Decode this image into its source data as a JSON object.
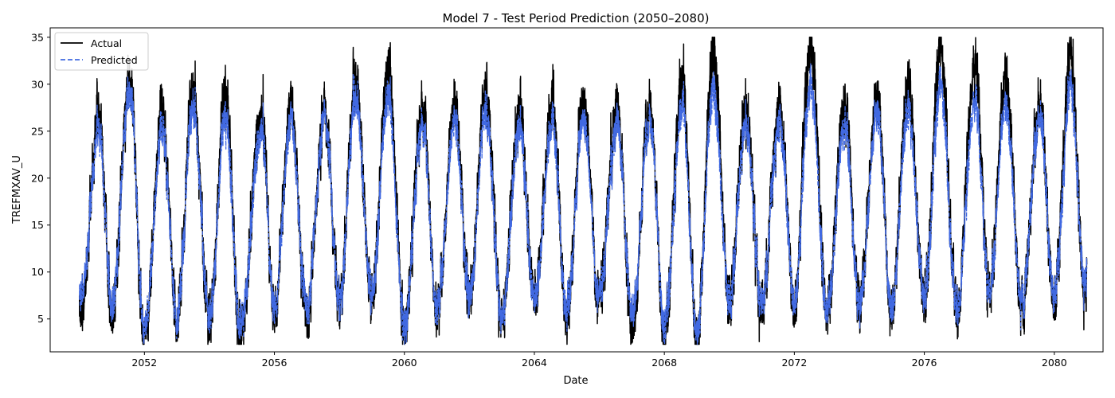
{
  "chart_data": {
    "type": "line",
    "title": "Model 7 - Test Period Prediction (2050–2080)",
    "xlabel": "Date",
    "ylabel": "TREFMXAV_U",
    "xlim": [
      2049.1,
      2081.5
    ],
    "ylim": [
      1.5,
      36
    ],
    "xticks": [
      2052,
      2056,
      2060,
      2064,
      2068,
      2072,
      2076,
      2080
    ],
    "yticks": [
      5,
      10,
      15,
      20,
      25,
      30,
      35
    ],
    "x_range": [
      2050.0,
      2081.0
    ],
    "grid": false,
    "legend_position": "upper-left",
    "series": [
      {
        "name": "Actual",
        "color": "#000000",
        "style": "solid",
        "summer_peaks": [
          [
            2050.6,
            27.0
          ],
          [
            2051.55,
            30.5
          ],
          [
            2052.55,
            26.5
          ],
          [
            2053.5,
            29.0
          ],
          [
            2054.5,
            29.0
          ],
          [
            2055.6,
            26.5
          ],
          [
            2056.5,
            27.5
          ],
          [
            2057.55,
            27.0
          ],
          [
            2058.5,
            30.0
          ],
          [
            2059.5,
            31.2
          ],
          [
            2060.55,
            27.0
          ],
          [
            2061.55,
            27.5
          ],
          [
            2062.5,
            29.0
          ],
          [
            2063.55,
            27.0
          ],
          [
            2064.55,
            28.0
          ],
          [
            2065.5,
            28.5
          ],
          [
            2066.55,
            27.5
          ],
          [
            2067.55,
            28.0
          ],
          [
            2068.55,
            30.5
          ],
          [
            2069.5,
            33.5
          ],
          [
            2070.5,
            27.0
          ],
          [
            2071.55,
            27.5
          ],
          [
            2072.5,
            34.5
          ],
          [
            2073.55,
            27.5
          ],
          [
            2074.55,
            28.5
          ],
          [
            2075.5,
            30.0
          ],
          [
            2076.5,
            33.5
          ],
          [
            2077.55,
            32.5
          ],
          [
            2078.5,
            31.0
          ],
          [
            2079.55,
            27.5
          ],
          [
            2080.5,
            33.0
          ]
        ],
        "winter_troughs": [
          [
            2050.05,
            6.0
          ],
          [
            2051.0,
            6.0
          ],
          [
            2052.0,
            2.6
          ],
          [
            2053.0,
            4.5
          ],
          [
            2054.0,
            4.5
          ],
          [
            2054.95,
            3.0
          ],
          [
            2056.0,
            5.5
          ],
          [
            2057.0,
            5.0
          ],
          [
            2058.0,
            7.0
          ],
          [
            2059.0,
            7.0
          ],
          [
            2060.0,
            4.2
          ],
          [
            2061.0,
            5.5
          ],
          [
            2062.0,
            7.5
          ],
          [
            2063.0,
            5.5
          ],
          [
            2064.0,
            7.0
          ],
          [
            2065.0,
            4.5
          ],
          [
            2066.0,
            7.5
          ],
          [
            2067.0,
            4.0
          ],
          [
            2068.0,
            3.5
          ],
          [
            2069.0,
            2.8
          ],
          [
            2070.0,
            7.0
          ],
          [
            2071.0,
            6.5
          ],
          [
            2072.0,
            6.5
          ],
          [
            2073.0,
            6.0
          ],
          [
            2074.0,
            6.5
          ],
          [
            2075.0,
            5.5
          ],
          [
            2076.0,
            7.0
          ],
          [
            2077.0,
            5.5
          ],
          [
            2078.0,
            8.0
          ],
          [
            2079.0,
            6.5
          ],
          [
            2080.0,
            7.0
          ],
          [
            2080.95,
            6.8
          ]
        ]
      },
      {
        "name": "Predicted",
        "color": "#4169e1",
        "style": "dashed",
        "summer_peaks": [
          [
            2050.6,
            25.5
          ],
          [
            2051.55,
            29.5
          ],
          [
            2052.55,
            25.0
          ],
          [
            2053.5,
            27.5
          ],
          [
            2054.5,
            26.5
          ],
          [
            2055.6,
            25.0
          ],
          [
            2056.5,
            26.0
          ],
          [
            2057.55,
            26.5
          ],
          [
            2058.5,
            28.5
          ],
          [
            2059.5,
            28.5
          ],
          [
            2060.55,
            25.5
          ],
          [
            2061.55,
            26.0
          ],
          [
            2062.5,
            27.0
          ],
          [
            2063.55,
            25.5
          ],
          [
            2064.55,
            26.0
          ],
          [
            2065.5,
            26.5
          ],
          [
            2066.55,
            26.0
          ],
          [
            2067.55,
            26.5
          ],
          [
            2068.55,
            27.5
          ],
          [
            2069.5,
            29.5
          ],
          [
            2070.5,
            25.5
          ],
          [
            2071.55,
            26.0
          ],
          [
            2072.5,
            30.0
          ],
          [
            2073.55,
            25.5
          ],
          [
            2074.55,
            27.0
          ],
          [
            2075.5,
            27.5
          ],
          [
            2076.5,
            29.5
          ],
          [
            2077.55,
            28.5
          ],
          [
            2078.5,
            28.0
          ],
          [
            2079.55,
            26.5
          ],
          [
            2080.5,
            29.5
          ]
        ],
        "winter_troughs": [
          [
            2050.05,
            7.5
          ],
          [
            2051.0,
            6.5
          ],
          [
            2052.0,
            3.5
          ],
          [
            2053.0,
            5.0
          ],
          [
            2054.0,
            5.0
          ],
          [
            2054.95,
            4.0
          ],
          [
            2056.0,
            6.0
          ],
          [
            2057.0,
            6.0
          ],
          [
            2058.0,
            7.0
          ],
          [
            2059.0,
            7.5
          ],
          [
            2060.0,
            4.5
          ],
          [
            2061.0,
            6.0
          ],
          [
            2062.0,
            7.5
          ],
          [
            2063.0,
            5.5
          ],
          [
            2064.0,
            7.0
          ],
          [
            2065.0,
            5.5
          ],
          [
            2066.0,
            7.5
          ],
          [
            2067.0,
            5.5
          ],
          [
            2068.0,
            4.5
          ],
          [
            2069.0,
            3.5
          ],
          [
            2070.0,
            7.0
          ],
          [
            2071.0,
            7.0
          ],
          [
            2072.0,
            7.0
          ],
          [
            2073.0,
            6.0
          ],
          [
            2074.0,
            6.5
          ],
          [
            2075.0,
            6.0
          ],
          [
            2076.0,
            7.5
          ],
          [
            2077.0,
            6.0
          ],
          [
            2078.0,
            8.0
          ],
          [
            2079.0,
            7.0
          ],
          [
            2080.0,
            7.5
          ],
          [
            2080.95,
            8.0
          ]
        ]
      }
    ]
  }
}
